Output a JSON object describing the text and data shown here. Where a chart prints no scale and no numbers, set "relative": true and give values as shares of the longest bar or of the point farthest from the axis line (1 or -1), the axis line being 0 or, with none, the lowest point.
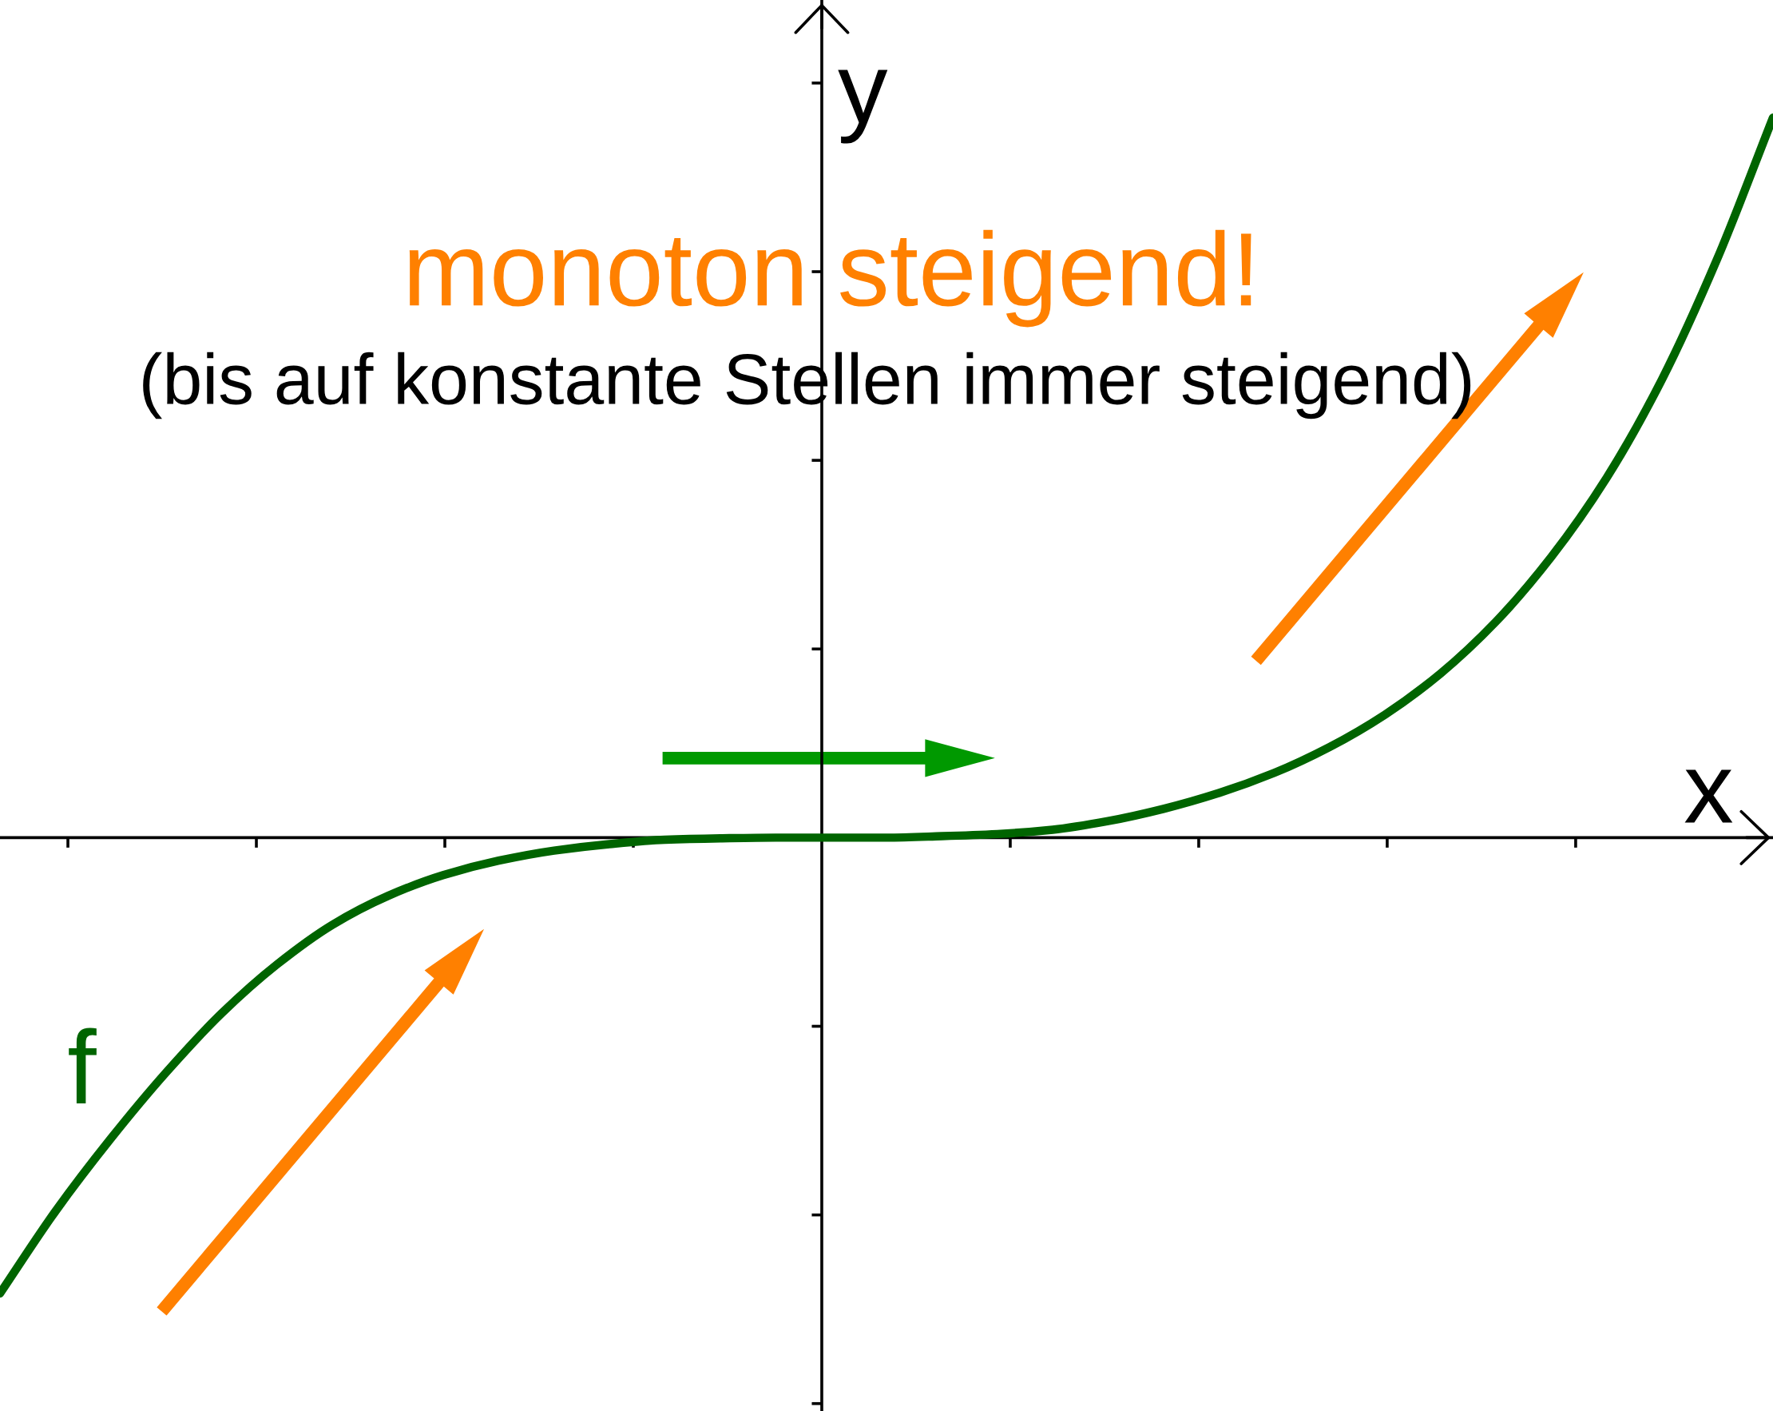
{
  "chart_data": {
    "type": "line",
    "title": "monoton steigend!",
    "subtitle": "(bis auf konstante Stellen immer steigend)",
    "xlabel": "x",
    "ylabel": "y",
    "relative": true,
    "categories": [
      null,
      null,
      null,
      null,
      null,
      null,
      null,
      null,
      null,
      null,
      null,
      null,
      null,
      null,
      null,
      null,
      null,
      null,
      null,
      null,
      null,
      null,
      null,
      null,
      null,
      null,
      null,
      null,
      null,
      null,
      null,
      null,
      null
    ],
    "series": [
      {
        "name": "f",
        "color": "#006400",
        "values": [
          -0.633,
          -0.519,
          -0.418,
          -0.326,
          -0.244,
          -0.176,
          -0.121,
          -0.081,
          -0.052,
          -0.032,
          -0.018,
          -0.009,
          -0.003,
          -0.001,
          0,
          0,
          0,
          0.002,
          0.005,
          0.011,
          0.023,
          0.04,
          0.062,
          0.09,
          0.126,
          0.171,
          0.228,
          0.3,
          0.39,
          0.5,
          0.637,
          0.805,
          1.0
        ]
      }
    ]
  }
}
